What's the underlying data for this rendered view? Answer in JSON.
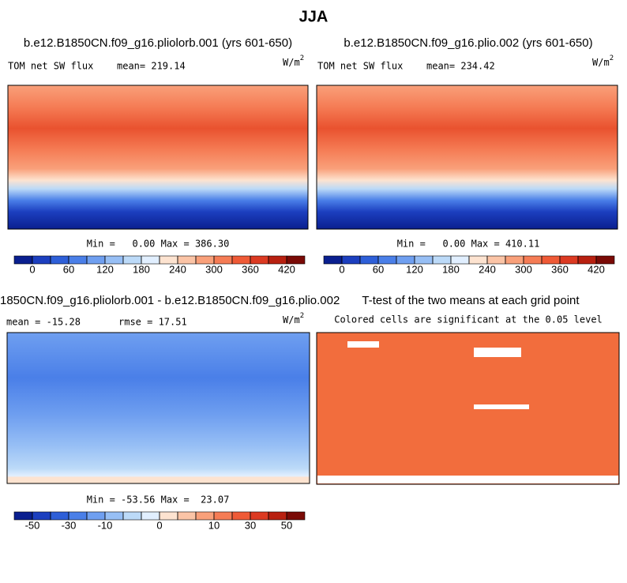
{
  "title": "JJA",
  "panels": [
    {
      "title": "b.e12.B1850CN.f09_g16.pliolorb.001 (yrs 601-650)",
      "left": "TOM net SW flux",
      "center": "mean= 219.14",
      "units": "W/m",
      "units_exp": "2",
      "stats": "Min =   0.00 Max = 386.30"
    },
    {
      "title": "b.e12.B1850CN.f09_g16.plio.002 (yrs 601-650)",
      "left": "TOM net SW flux",
      "center": "mean= 234.42",
      "units": "W/m",
      "units_exp": "2",
      "stats": "Min =   0.00 Max = 410.11"
    },
    {
      "title": "1850CN.f09_g16.pliolorb.001 - b.e12.B1850CN.f09_g16.plio.002",
      "left": "mean = -15.28",
      "center": "rmse =  17.51",
      "units": "W/m",
      "units_exp": "2",
      "stats": "Min = -53.56 Max =  23.07"
    },
    {
      "title": "T-test of the two means at each grid point",
      "center": "Colored cells are significant at the 0.05 level"
    }
  ],
  "colorbars": [
    {
      "levels": [
        0,
        30,
        60,
        90,
        120,
        150,
        180,
        210,
        240,
        270,
        300,
        330,
        360,
        390,
        420
      ],
      "ticks": [
        0,
        60,
        120,
        180,
        240,
        300,
        360,
        420
      ]
    },
    {
      "levels": [
        0,
        30,
        60,
        90,
        120,
        150,
        180,
        210,
        240,
        270,
        300,
        330,
        360,
        390,
        420
      ],
      "ticks": [
        0,
        60,
        120,
        180,
        240,
        300,
        360,
        420
      ]
    },
    {
      "levels": [
        -50,
        -40,
        -30,
        -20,
        -10,
        -6,
        -3,
        0,
        3,
        6,
        10,
        20,
        30,
        40,
        50
      ],
      "ticks": [
        -50,
        -30,
        -10,
        0,
        10,
        30,
        50
      ]
    }
  ],
  "colors": [
    "#0a1f8f",
    "#1c3fbf",
    "#2e5fd8",
    "#4a7fe8",
    "#6f9ff0",
    "#97bff5",
    "#bcdaf8",
    "#e1efff",
    "#fde3d0",
    "#fbc4a6",
    "#f9a07a",
    "#f57c55",
    "#ef5a36",
    "#dc3a22",
    "#b82010",
    "#7a0a06"
  ]
}
